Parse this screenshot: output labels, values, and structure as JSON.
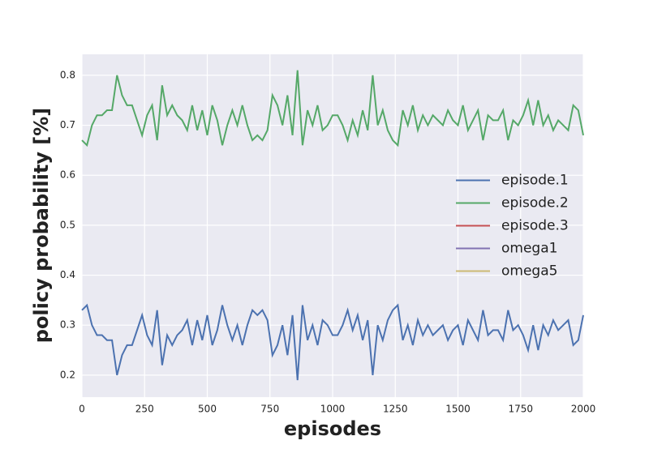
{
  "chart_data": {
    "type": "line",
    "xlabel": "episodes",
    "ylabel": "policy probability [%]",
    "x": [
      0,
      20,
      40,
      60,
      80,
      100,
      120,
      140,
      160,
      180,
      200,
      220,
      240,
      260,
      280,
      300,
      320,
      340,
      360,
      380,
      400,
      420,
      440,
      460,
      480,
      500,
      520,
      540,
      560,
      580,
      600,
      620,
      640,
      660,
      680,
      700,
      720,
      740,
      760,
      780,
      800,
      820,
      840,
      860,
      880,
      900,
      920,
      940,
      960,
      980,
      1000,
      1020,
      1040,
      1060,
      1080,
      1100,
      1120,
      1140,
      1160,
      1180,
      1200,
      1220,
      1240,
      1260,
      1280,
      1300,
      1320,
      1340,
      1360,
      1380,
      1400,
      1420,
      1440,
      1460,
      1480,
      1500,
      1520,
      1540,
      1560,
      1580,
      1600,
      1620,
      1640,
      1660,
      1680,
      1700,
      1720,
      1740,
      1760,
      1780,
      1800,
      1820,
      1840,
      1860,
      1880,
      1900,
      1920,
      1940,
      1960,
      1980,
      2000
    ],
    "series": [
      {
        "name": "episode.1",
        "color": "#4c72b0",
        "values": [
          0.33,
          0.34,
          0.3,
          0.28,
          0.28,
          0.27,
          0.27,
          0.2,
          0.24,
          0.26,
          0.26,
          0.29,
          0.32,
          0.28,
          0.26,
          0.33,
          0.22,
          0.28,
          0.26,
          0.28,
          0.29,
          0.31,
          0.26,
          0.31,
          0.27,
          0.32,
          0.26,
          0.29,
          0.34,
          0.3,
          0.27,
          0.3,
          0.26,
          0.3,
          0.33,
          0.32,
          0.33,
          0.31,
          0.24,
          0.26,
          0.3,
          0.24,
          0.32,
          0.19,
          0.34,
          0.27,
          0.3,
          0.26,
          0.31,
          0.3,
          0.28,
          0.28,
          0.3,
          0.33,
          0.29,
          0.32,
          0.27,
          0.31,
          0.2,
          0.3,
          0.27,
          0.31,
          0.33,
          0.34,
          0.27,
          0.3,
          0.26,
          0.31,
          0.28,
          0.3,
          0.28,
          0.29,
          0.3,
          0.27,
          0.29,
          0.3,
          0.26,
          0.31,
          0.29,
          0.27,
          0.33,
          0.28,
          0.29,
          0.29,
          0.27,
          0.33,
          0.29,
          0.3,
          0.28,
          0.25,
          0.3,
          0.25,
          0.3,
          0.28,
          0.31,
          0.29,
          0.3,
          0.31,
          0.26,
          0.27,
          0.32
        ]
      },
      {
        "name": "episode.2",
        "color": "#55a868",
        "values": [
          0.67,
          0.66,
          0.7,
          0.72,
          0.72,
          0.73,
          0.73,
          0.8,
          0.76,
          0.74,
          0.74,
          0.71,
          0.68,
          0.72,
          0.74,
          0.67,
          0.78,
          0.72,
          0.74,
          0.72,
          0.71,
          0.69,
          0.74,
          0.69,
          0.73,
          0.68,
          0.74,
          0.71,
          0.66,
          0.7,
          0.73,
          0.7,
          0.74,
          0.7,
          0.67,
          0.68,
          0.67,
          0.69,
          0.76,
          0.74,
          0.7,
          0.76,
          0.68,
          0.81,
          0.66,
          0.73,
          0.7,
          0.74,
          0.69,
          0.7,
          0.72,
          0.72,
          0.7,
          0.67,
          0.71,
          0.68,
          0.73,
          0.69,
          0.8,
          0.7,
          0.73,
          0.69,
          0.67,
          0.66,
          0.73,
          0.7,
          0.74,
          0.69,
          0.72,
          0.7,
          0.72,
          0.71,
          0.7,
          0.73,
          0.71,
          0.7,
          0.74,
          0.69,
          0.71,
          0.73,
          0.67,
          0.72,
          0.71,
          0.71,
          0.73,
          0.67,
          0.71,
          0.7,
          0.72,
          0.75,
          0.7,
          0.75,
          0.7,
          0.72,
          0.69,
          0.71,
          0.7,
          0.69,
          0.74,
          0.73,
          0.68
        ]
      },
      {
        "name": "episode.3",
        "color": "#c44e52",
        "values": [
          null,
          null,
          null,
          null,
          null,
          null,
          null,
          null,
          null,
          null,
          null,
          null,
          null,
          null,
          null,
          null,
          null,
          null,
          null,
          null,
          null,
          null,
          null,
          null,
          null,
          null,
          null,
          null,
          null,
          null,
          null,
          null,
          null,
          null,
          null,
          null,
          null,
          null,
          null,
          null,
          null,
          null,
          null,
          null,
          null,
          null,
          null,
          null,
          null,
          null,
          null,
          null,
          null,
          null,
          null,
          null,
          null,
          null,
          null,
          null,
          null,
          null,
          null,
          null,
          null,
          null,
          null,
          null,
          null,
          null,
          null,
          null,
          null,
          null,
          null,
          null,
          null,
          null,
          null,
          null,
          null,
          null,
          null,
          null,
          null,
          null,
          null,
          null,
          null,
          null,
          null,
          null,
          null,
          null,
          null,
          null,
          null,
          null,
          null,
          null,
          null
        ]
      },
      {
        "name": "omega1",
        "color": "#8172b2",
        "values": [
          null,
          null,
          null,
          null,
          null,
          null,
          null,
          null,
          null,
          null,
          null,
          null,
          null,
          null,
          null,
          null,
          null,
          null,
          null,
          null,
          null,
          null,
          null,
          null,
          null,
          null,
          null,
          null,
          null,
          null,
          null,
          null,
          null,
          null,
          null,
          null,
          null,
          null,
          null,
          null,
          null,
          null,
          null,
          null,
          null,
          null,
          null,
          null,
          null,
          null,
          null,
          null,
          null,
          null,
          null,
          null,
          null,
          null,
          null,
          null,
          null,
          null,
          null,
          null,
          null,
          null,
          null,
          null,
          null,
          null,
          null,
          null,
          null,
          null,
          null,
          null,
          null,
          null,
          null,
          null,
          null,
          null,
          null,
          null,
          null,
          null,
          null,
          null,
          null,
          null,
          null,
          null,
          null,
          null,
          null,
          null,
          null,
          null,
          null,
          null,
          null
        ]
      },
      {
        "name": "omega5",
        "color": "#ccb974",
        "values": [
          null,
          null,
          null,
          null,
          null,
          null,
          null,
          null,
          null,
          null,
          null,
          null,
          null,
          null,
          null,
          null,
          null,
          null,
          null,
          null,
          null,
          null,
          null,
          null,
          null,
          null,
          null,
          null,
          null,
          null,
          null,
          null,
          null,
          null,
          null,
          null,
          null,
          null,
          null,
          null,
          null,
          null,
          null,
          null,
          null,
          null,
          null,
          null,
          null,
          null,
          null,
          null,
          null,
          null,
          null,
          null,
          null,
          null,
          null,
          null,
          null,
          null,
          null,
          null,
          null,
          null,
          null,
          null,
          null,
          null,
          null,
          null,
          null,
          null,
          null,
          null,
          null,
          null,
          null,
          null,
          null,
          null,
          null,
          null,
          null,
          null,
          null,
          null,
          null,
          null,
          null,
          null,
          null,
          null,
          null,
          null,
          null,
          null,
          null,
          null,
          null
        ]
      }
    ],
    "xlim": [
      0,
      2000
    ],
    "xticks": [
      0,
      250,
      500,
      750,
      1000,
      1250,
      1500,
      1750,
      2000
    ],
    "ylim": [
      0.156,
      0.842
    ],
    "yticks": [
      0.2,
      0.3,
      0.4,
      0.5,
      0.6,
      0.7,
      0.8
    ],
    "grid": true,
    "legend": "center right"
  }
}
